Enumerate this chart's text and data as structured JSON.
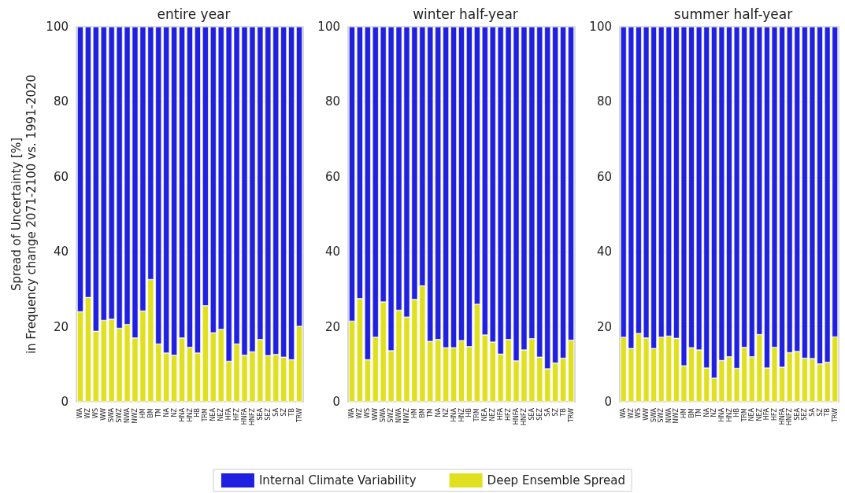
{
  "chart_data": [
    {
      "type": "bar",
      "title": "entire year",
      "ylabel": "Spread of Uncertainty [%]\nin Frequency change 2071-2100 vs. 1991-2020",
      "stacked": true,
      "grid": "y",
      "legend": "bottom",
      "ylim": [
        0,
        100
      ],
      "yticks": [
        0,
        20,
        40,
        60,
        80,
        100
      ],
      "categories": [
        "WA",
        "WZ",
        "WS",
        "WW",
        "SWA",
        "SWZ",
        "NWA",
        "NWZ",
        "HM",
        "BM",
        "TM",
        "NA",
        "NZ",
        "HNA",
        "HNZ",
        "HB",
        "TRM",
        "NEA",
        "NEZ",
        "HFA",
        "HFZ",
        "HNFA",
        "HNFZ",
        "SEA",
        "SEZ",
        "SA",
        "SZ",
        "TB",
        "TRW"
      ],
      "series": [
        {
          "name": "Deep Ensemble Spread",
          "color": "#e0e020",
          "values": [
            24,
            27.8,
            18.8,
            21.7,
            22,
            19.6,
            20.6,
            17,
            24.2,
            32.6,
            15.4,
            13,
            12.4,
            17,
            14.5,
            13,
            25.6,
            18.4,
            19.3,
            10.8,
            15.4,
            12.4,
            13.3,
            16.6,
            12.3,
            12.6,
            11.9,
            11.2,
            20.1
          ]
        },
        {
          "name": "Internal Climate Variability",
          "color": "#2020e0",
          "values": [
            76,
            72.2,
            81.2,
            78.3,
            78,
            80.4,
            79.4,
            83,
            75.8,
            67.4,
            84.6,
            87,
            87.6,
            83,
            85.5,
            87,
            74.4,
            81.6,
            80.7,
            89.2,
            84.6,
            87.6,
            86.7,
            83.4,
            87.7,
            87.4,
            88.1,
            88.8,
            79.9
          ]
        }
      ]
    },
    {
      "type": "bar",
      "title": "winter half-year",
      "stacked": true,
      "grid": "y",
      "ylim": [
        0,
        100
      ],
      "yticks": [
        0,
        20,
        40,
        60,
        80,
        100
      ],
      "categories": [
        "WA",
        "WZ",
        "WS",
        "WW",
        "SWA",
        "SWZ",
        "NWA",
        "NWZ",
        "HM",
        "BM",
        "TM",
        "NA",
        "NZ",
        "HNA",
        "HNZ",
        "HB",
        "TRM",
        "NEA",
        "NEZ",
        "HFA",
        "HFZ",
        "HNFA",
        "HNFZ",
        "SEA",
        "SEZ",
        "SA",
        "SZ",
        "TB",
        "TRW"
      ],
      "series": [
        {
          "color": "#e0e020",
          "values": [
            21.5,
            27.5,
            11.2,
            17.2,
            26.6,
            13.6,
            24.4,
            22.6,
            27.3,
            30.9,
            16.1,
            16.6,
            14.4,
            14.4,
            16.3,
            14.7,
            26,
            17.8,
            15.9,
            12.7,
            16.6,
            10.9,
            13.8,
            16.8,
            11.9,
            8.8,
            10.3,
            11.6,
            16.4
          ]
        },
        {
          "color": "#2020e0",
          "values": [
            78.5,
            72.5,
            88.8,
            82.8,
            73.4,
            86.4,
            75.6,
            77.4,
            72.7,
            69.1,
            83.9,
            83.4,
            85.6,
            85.6,
            83.7,
            85.3,
            74,
            82.2,
            84.1,
            87.3,
            83.4,
            89.1,
            86.2,
            83.2,
            88.1,
            91.2,
            89.7,
            88.4,
            83.6
          ]
        }
      ]
    },
    {
      "type": "bar",
      "title": "summer half-year",
      "stacked": true,
      "grid": "y",
      "ylim": [
        0,
        100
      ],
      "yticks": [
        0,
        20,
        40,
        60,
        80,
        100
      ],
      "categories": [
        "WA",
        "WZ",
        "WS",
        "WW",
        "SWA",
        "SWZ",
        "NWA",
        "NWZ",
        "HM",
        "BM",
        "TM",
        "NA",
        "NZ",
        "HNA",
        "HNZ",
        "HB",
        "TRM",
        "NEA",
        "NEZ",
        "HFA",
        "HFZ",
        "HNFA",
        "HNFZ",
        "SEA",
        "SEZ",
        "SA",
        "SZ",
        "TB",
        "TRW"
      ],
      "series": [
        {
          "color": "#e0e020",
          "values": [
            17.2,
            14.2,
            18.2,
            17,
            14.2,
            17.2,
            17.5,
            16.9,
            9.6,
            14.4,
            13.8,
            9,
            6.3,
            11,
            12,
            8.9,
            14.5,
            12,
            17.9,
            9,
            14.5,
            9.2,
            13.1,
            13.4,
            11.6,
            11.5,
            10.1,
            10.5,
            17.3
          ]
        },
        {
          "color": "#2020e0",
          "values": [
            82.8,
            85.8,
            81.8,
            83,
            85.8,
            82.8,
            82.5,
            83.1,
            90.4,
            85.6,
            86.2,
            91,
            93.7,
            89,
            88,
            91.1,
            85.5,
            88,
            82.1,
            91,
            85.5,
            90.8,
            86.9,
            86.6,
            88.4,
            88.5,
            89.9,
            89.5,
            82.7
          ]
        }
      ]
    }
  ]
}
